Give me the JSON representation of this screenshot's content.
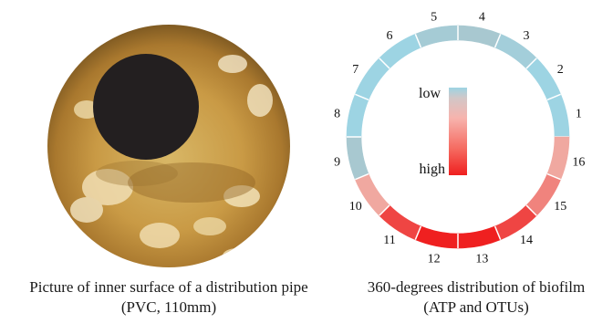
{
  "left_caption": {
    "line1": "Picture of inner surface of a distribution pipe",
    "line2": "(PVC, 110mm)"
  },
  "right_caption": {
    "line1": "360-degrees distribution of biofilm",
    "line2": "(ATP and OTUs)"
  },
  "legend": {
    "low": "low",
    "high": "high"
  },
  "colors": {
    "low": "#9dd4e3",
    "mid_low": "#a8c8d0",
    "mid": "#f0a8a0",
    "high": "#ef2020",
    "pipe_dark": "#231f20"
  },
  "ring": {
    "segments": [
      {
        "label": "1",
        "level": 0.0
      },
      {
        "label": "2",
        "level": 0.0
      },
      {
        "label": "3",
        "level": 0.1
      },
      {
        "label": "4",
        "level": 0.2
      },
      {
        "label": "5",
        "level": 0.15
      },
      {
        "label": "6",
        "level": 0.0
      },
      {
        "label": "7",
        "level": 0.0
      },
      {
        "label": "8",
        "level": 0.0
      },
      {
        "label": "9",
        "level": 0.2
      },
      {
        "label": "10",
        "level": 0.45
      },
      {
        "label": "11",
        "level": 0.85
      },
      {
        "label": "12",
        "level": 1.0
      },
      {
        "label": "13",
        "level": 1.0
      },
      {
        "label": "14",
        "level": 0.85
      },
      {
        "label": "15",
        "level": 0.6
      },
      {
        "label": "16",
        "level": 0.45
      }
    ]
  }
}
